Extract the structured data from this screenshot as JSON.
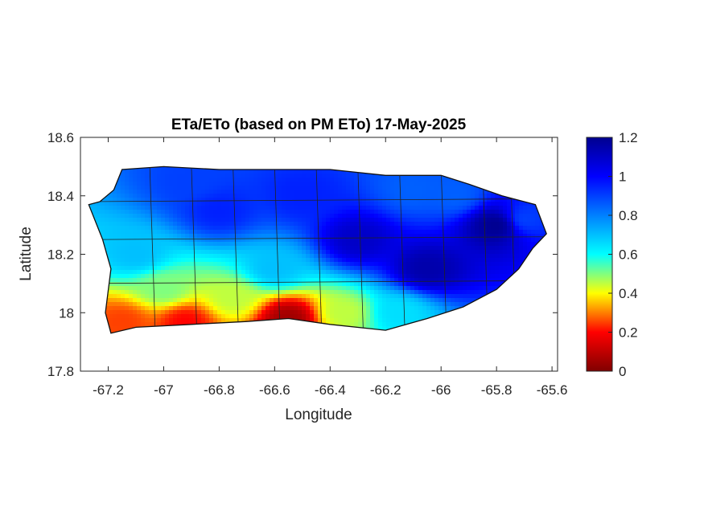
{
  "chart_data": {
    "type": "heatmap",
    "title": "ETa/ETo (based on PM ETo) 17-May-2025",
    "xlabel": "Longitude",
    "ylabel": "Latitude",
    "xlim": [
      -67.3,
      -65.58
    ],
    "ylim": [
      17.8,
      18.6
    ],
    "x_ticks": [
      -67.2,
      -67,
      -66.8,
      -66.6,
      -66.4,
      -66.2,
      -66,
      -65.8,
      -65.6
    ],
    "x_tick_labels": [
      "-67.2",
      "-67",
      "-66.8",
      "-66.6",
      "-66.4",
      "-66.2",
      "-66",
      "-65.8",
      "-65.6"
    ],
    "y_ticks": [
      17.8,
      18,
      18.2,
      18.4,
      18.6
    ],
    "y_tick_labels": [
      "17.8",
      "18",
      "18.2",
      "18.4",
      "18.6"
    ],
    "colorbar": {
      "colormap": "jet",
      "limits": [
        0,
        1.2
      ],
      "ticks": [
        0,
        0.2,
        0.4,
        0.6,
        0.8,
        1,
        1.2
      ],
      "tick_labels": [
        "0",
        "0.2",
        "0.4",
        "0.6",
        "0.8",
        "1",
        "1.2"
      ],
      "colors": [
        "#800000",
        "#ff0000",
        "#ffff00",
        "#00ffff",
        "#0080ff",
        "#0000ff",
        "#00008f"
      ]
    },
    "region_outline": [
      [
        -67.27,
        18.37
      ],
      [
        -67.23,
        18.38
      ],
      [
        -67.18,
        18.42
      ],
      [
        -67.15,
        18.49
      ],
      [
        -67.0,
        18.5
      ],
      [
        -66.8,
        18.49
      ],
      [
        -66.6,
        18.49
      ],
      [
        -66.4,
        18.49
      ],
      [
        -66.2,
        18.47
      ],
      [
        -66.0,
        18.47
      ],
      [
        -65.9,
        18.44
      ],
      [
        -65.78,
        18.4
      ],
      [
        -65.66,
        18.37
      ],
      [
        -65.62,
        18.27
      ],
      [
        -65.67,
        18.22
      ],
      [
        -65.72,
        18.15
      ],
      [
        -65.8,
        18.08
      ],
      [
        -65.92,
        18.02
      ],
      [
        -66.05,
        17.98
      ],
      [
        -66.2,
        17.94
      ],
      [
        -66.4,
        17.96
      ],
      [
        -66.55,
        17.98
      ],
      [
        -66.7,
        17.97
      ],
      [
        -66.9,
        17.96
      ],
      [
        -67.1,
        17.95
      ],
      [
        -67.19,
        17.93
      ],
      [
        -67.21,
        18.0
      ],
      [
        -67.19,
        18.15
      ],
      [
        -67.22,
        18.25
      ],
      [
        -67.27,
        18.37
      ]
    ],
    "value_zones": [
      {
        "lon": -66.55,
        "lat": 17.98,
        "value": 0.05
      },
      {
        "lon": -66.92,
        "lat": 17.97,
        "value": 0.2
      },
      {
        "lon": -67.15,
        "lat": 17.97,
        "value": 0.25
      },
      {
        "lon": -66.75,
        "lat": 18.05,
        "value": 0.45
      },
      {
        "lon": -67.0,
        "lat": 18.08,
        "value": 0.5
      },
      {
        "lon": -66.35,
        "lat": 18.0,
        "value": 0.45
      },
      {
        "lon": -66.15,
        "lat": 18.0,
        "value": 0.65
      },
      {
        "lon": -67.1,
        "lat": 18.2,
        "value": 0.7
      },
      {
        "lon": -66.6,
        "lat": 18.15,
        "value": 0.7
      },
      {
        "lon": -66.8,
        "lat": 18.35,
        "value": 0.95
      },
      {
        "lon": -66.9,
        "lat": 18.45,
        "value": 0.9
      },
      {
        "lon": -66.5,
        "lat": 18.4,
        "value": 0.95
      },
      {
        "lon": -66.3,
        "lat": 18.25,
        "value": 1.1
      },
      {
        "lon": -66.05,
        "lat": 18.15,
        "value": 1.15
      },
      {
        "lon": -65.8,
        "lat": 18.3,
        "value": 1.2
      },
      {
        "lon": -65.95,
        "lat": 18.4,
        "value": 0.85
      },
      {
        "lon": -66.1,
        "lat": 18.42,
        "value": 0.85
      },
      {
        "lon": -65.7,
        "lat": 18.32,
        "value": 0.9
      }
    ]
  }
}
